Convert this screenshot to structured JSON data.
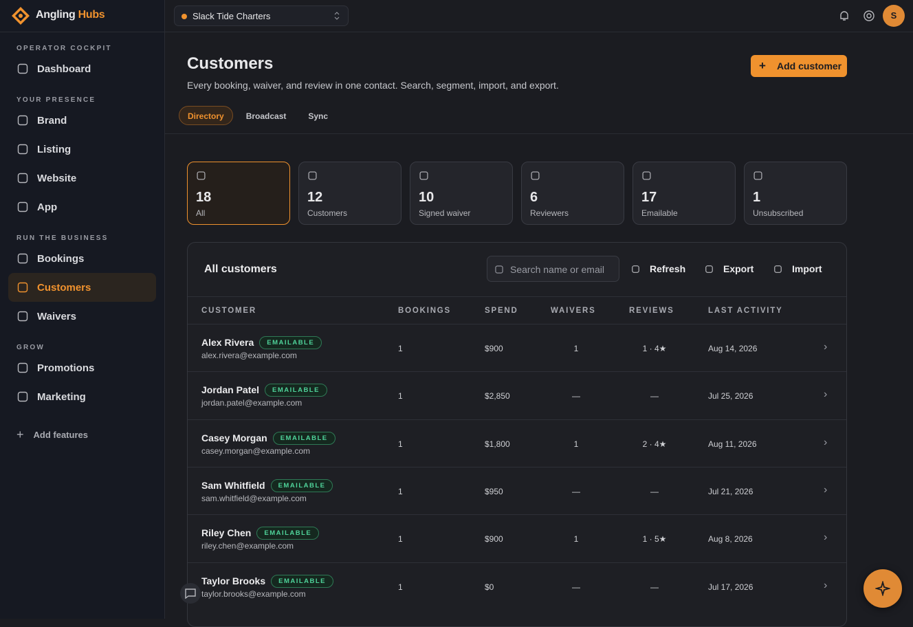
{
  "brand": {
    "name": "Angling",
    "accent": "Hubs"
  },
  "org": "Slack Tide Charters",
  "avatar": "S",
  "sidebar": {
    "sections": [
      {
        "label": "OPERATOR COCKPIT",
        "items": [
          "Dashboard"
        ]
      },
      {
        "label": "YOUR PRESENCE",
        "items": [
          "Brand",
          "Listing",
          "Website",
          "App"
        ]
      },
      {
        "label": "RUN THE BUSINESS",
        "items": [
          "Bookings",
          "Customers",
          "Waivers"
        ]
      },
      {
        "label": "GROW",
        "items": [
          "Promotions",
          "Marketing"
        ]
      }
    ],
    "add_features": "Add features"
  },
  "header": {
    "title": "Customers",
    "subtitle": "Every booking, waiver, and review in one contact. Search, segment, import, and export.",
    "button": "Add customer"
  },
  "tabs": [
    "Directory",
    "Broadcast",
    "Sync"
  ],
  "stats": [
    {
      "value": 18,
      "label": "All"
    },
    {
      "value": 12,
      "label": "Customers"
    },
    {
      "value": 10,
      "label": "Signed waiver"
    },
    {
      "value": 6,
      "label": "Reviewers"
    },
    {
      "value": 17,
      "label": "Emailable"
    },
    {
      "value": 1,
      "label": "Unsubscribed"
    }
  ],
  "table": {
    "title": "All customers",
    "search": "Search name or email",
    "actions": [
      "Refresh",
      "Export",
      "Import"
    ],
    "columns": [
      "CUSTOMER",
      "BOOKINGS",
      "SPEND",
      "WAIVERS",
      "REVIEWS",
      "LAST ACTIVITY"
    ],
    "rows": [
      {
        "name": "Alex Rivera",
        "badge": "EMAILABLE",
        "email": "alex.rivera@example.com",
        "bookings": 1,
        "spend": "$900",
        "waivers": "1",
        "reviews": "1 · 4★",
        "last": "Aug 14, 2026"
      },
      {
        "name": "Jordan Patel",
        "badge": "EMAILABLE",
        "email": "jordan.patel@example.com",
        "bookings": 1,
        "spend": "$2,850",
        "waivers": "—",
        "reviews": "—",
        "last": "Jul 25, 2026"
      },
      {
        "name": "Casey Morgan",
        "badge": "EMAILABLE",
        "email": "casey.morgan@example.com",
        "bookings": 1,
        "spend": "$1,800",
        "waivers": "1",
        "reviews": "2 · 4★",
        "last": "Aug 11, 2026"
      },
      {
        "name": "Sam Whitfield",
        "badge": "EMAILABLE",
        "email": "sam.whitfield@example.com",
        "bookings": 1,
        "spend": "$950",
        "waivers": "—",
        "reviews": "—",
        "last": "Jul 21, 2026"
      },
      {
        "name": "Riley Chen",
        "badge": "EMAILABLE",
        "email": "riley.chen@example.com",
        "bookings": 1,
        "spend": "$900",
        "waivers": "1",
        "reviews": "1 · 5★",
        "last": "Aug 8, 2026"
      },
      {
        "name": "Taylor Brooks",
        "badge": "EMAILABLE",
        "email": "taylor.brooks@example.com",
        "bookings": 1,
        "spend": "$0",
        "waivers": "—",
        "reviews": "—",
        "last": "Jul 17, 2026"
      }
    ]
  }
}
